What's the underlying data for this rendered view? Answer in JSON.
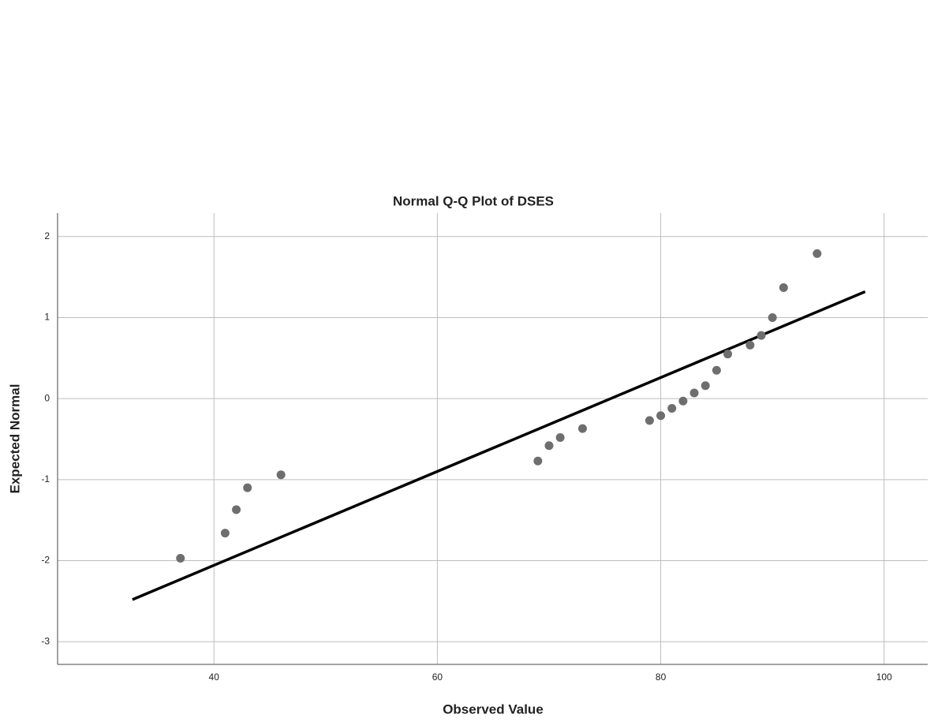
{
  "chart_data": {
    "type": "scatter",
    "title": "Normal Q-Q Plot of DSES",
    "x_label": "Observed Value",
    "y_label": "Expected Normal",
    "x": [
      37,
      41,
      42,
      43,
      46,
      69,
      70,
      71,
      73,
      79,
      80,
      81,
      82,
      83,
      84,
      85,
      86,
      88,
      89,
      90,
      91,
      94
    ],
    "values": [
      -1.97,
      -1.66,
      -1.37,
      -1.1,
      -0.94,
      -0.77,
      -0.58,
      -0.48,
      -0.37,
      -0.27,
      -0.21,
      -0.12,
      -0.03,
      0.07,
      0.16,
      0.35,
      0.55,
      0.66,
      0.78,
      1.0,
      1.37,
      1.79
    ],
    "color": "#6e6e6e",
    "reference_line": {
      "x": [
        32.7,
        98.3
      ],
      "y": [
        -2.48,
        1.32
      ],
      "color": "#000000"
    },
    "xlim": [
      26,
      103.9
    ],
    "ylim": [
      -3.28,
      2.29
    ],
    "xticks": [
      40,
      60,
      80,
      100
    ],
    "yticks": [
      -3,
      -2,
      -1,
      0,
      1,
      2
    ],
    "grid": true
  }
}
